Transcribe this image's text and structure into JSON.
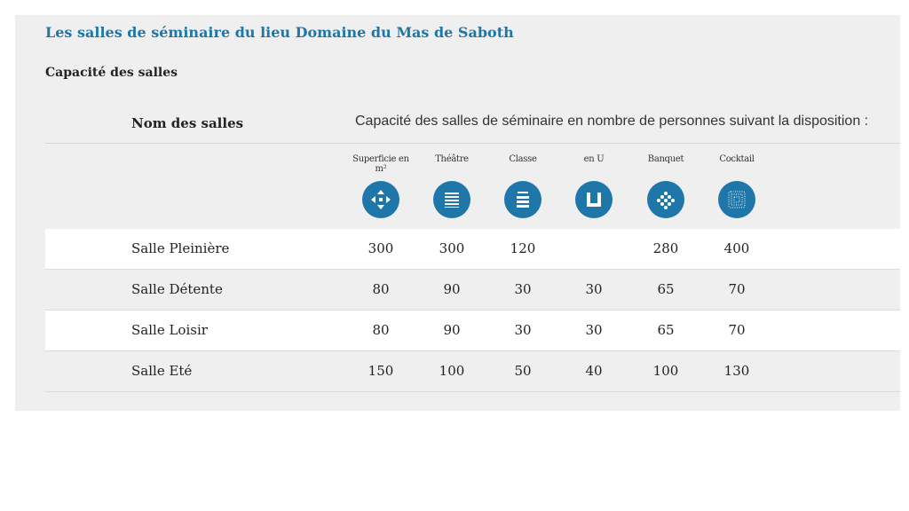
{
  "page": {
    "title": "Les salles de séminaire du lieu Domaine du Mas de Saboth",
    "subtitle": "Capacité des salles"
  },
  "table": {
    "name_header": "Nom des salles",
    "caption": "Capacité des salles de séminaire en nombre de personnes suivant la disposition :",
    "columns": [
      {
        "label": "Superficie en m²",
        "icon": "arrows-cross-icon"
      },
      {
        "label": "Théâtre",
        "icon": "theatre-rows-icon"
      },
      {
        "label": "Classe",
        "icon": "classroom-icon"
      },
      {
        "label": "en U",
        "icon": "u-shape-icon"
      },
      {
        "label": "Banquet",
        "icon": "banquet-icon"
      },
      {
        "label": "Cocktail",
        "icon": "cocktail-icon"
      }
    ],
    "rows": [
      {
        "name": "Salle Pleinière",
        "values": [
          "300",
          "300",
          "120",
          "",
          "280",
          "400"
        ]
      },
      {
        "name": "Salle Détente",
        "values": [
          "80",
          "90",
          "30",
          "30",
          "65",
          "70"
        ]
      },
      {
        "name": "Salle Loisir",
        "values": [
          "80",
          "90",
          "30",
          "30",
          "65",
          "70"
        ]
      },
      {
        "name": "Salle Eté",
        "values": [
          "150",
          "100",
          "50",
          "40",
          "100",
          "130"
        ]
      }
    ]
  },
  "colors": {
    "accent": "#1e77a8",
    "panel_bg": "#efefef",
    "row_alt": "#ffffff"
  }
}
